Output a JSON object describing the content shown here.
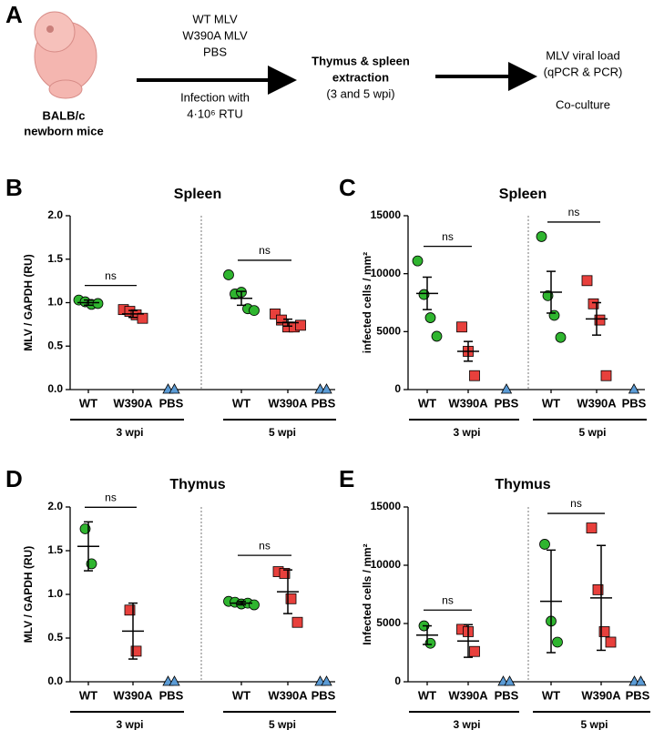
{
  "diagram": {
    "panel": "A",
    "mouse_label": [
      "BALB/c",
      "newborn mice"
    ],
    "treatments": [
      "WT MLV",
      "W390A MLV",
      "PBS"
    ],
    "infection": [
      "Infection with",
      "4·10⁶ RTU"
    ],
    "extraction": [
      "Thymus & spleen",
      "extraction",
      "(3 and 5 wpi)"
    ],
    "readouts": [
      "MLV viral load",
      "(qPCR & PCR)",
      "Co-culture"
    ]
  },
  "chart_data": [
    {
      "type": "scatter",
      "panel": "B",
      "title": "Spleen",
      "y_label": "MLV / GAPDH (RU)",
      "ylim": [
        0,
        2
      ],
      "yticks": [
        {
          "value": 0,
          "label": "0.0"
        },
        0.5,
        {
          "value": 1,
          "label": "1.0"
        },
        1.5,
        {
          "value": 2,
          "label": "2.0"
        }
      ],
      "groups": [
        {
          "name": "3 wpi",
          "comparison": "ns",
          "categories": [
            {
              "name": "WT",
              "color": "#2fb52f",
              "marker": "circle",
              "values": [
                1.03,
                1.01,
                0.98,
                0.99
              ],
              "mean": 1.0,
              "error": 0.03
            },
            {
              "name": "W390A",
              "color": "#e8403c",
              "marker": "square",
              "values": [
                0.92,
                0.9,
                0.86,
                0.82
              ],
              "mean": 0.87,
              "error": 0.04
            },
            {
              "name": "PBS",
              "color": "#5b9bd5",
              "marker": "triangle",
              "values": [
                0,
                0
              ]
            }
          ]
        },
        {
          "name": "5 wpi",
          "comparison": "ns",
          "categories": [
            {
              "name": "WT",
              "color": "#2fb52f",
              "marker": "circle",
              "values": [
                1.32,
                1.1,
                1.12,
                0.93,
                0.91
              ],
              "mean": 1.05,
              "error": 0.08
            },
            {
              "name": "W390A",
              "color": "#e8403c",
              "marker": "square",
              "values": [
                0.87,
                0.8,
                0.72,
                0.72,
                0.74
              ],
              "mean": 0.77,
              "error": 0.04
            },
            {
              "name": "PBS",
              "color": "#5b9bd5",
              "marker": "triangle",
              "values": [
                0,
                0
              ]
            }
          ]
        }
      ]
    },
    {
      "type": "scatter",
      "panel": "C",
      "title": "Spleen",
      "y_label": "infected cells / mm²",
      "ylim": [
        0,
        15000
      ],
      "yticks": [
        0,
        5000,
        10000,
        15000
      ],
      "groups": [
        {
          "name": "3 wpi",
          "comparison": "ns",
          "categories": [
            {
              "name": "WT",
              "color": "#2fb52f",
              "marker": "circle",
              "values": [
                11100,
                8200,
                6200,
                4600
              ],
              "mean": 8300,
              "error": 1400
            },
            {
              "name": "W390A",
              "color": "#e8403c",
              "marker": "square",
              "values": [
                5400,
                3300,
                1200
              ],
              "mean": 3300,
              "error": 850
            },
            {
              "name": "PBS",
              "color": "#5b9bd5",
              "marker": "triangle",
              "values": [
                0
              ]
            }
          ]
        },
        {
          "name": "5 wpi",
          "comparison": "ns",
          "categories": [
            {
              "name": "WT",
              "color": "#2fb52f",
              "marker": "circle",
              "values": [
                13200,
                8100,
                6400,
                4500
              ],
              "mean": 8400,
              "error": 1800
            },
            {
              "name": "W390A",
              "color": "#e8403c",
              "marker": "square",
              "values": [
                9400,
                7400,
                6000,
                1200
              ],
              "mean": 6100,
              "error": 1400
            },
            {
              "name": "PBS",
              "color": "#5b9bd5",
              "marker": "triangle",
              "values": [
                0
              ]
            }
          ]
        }
      ]
    },
    {
      "type": "scatter",
      "panel": "D",
      "title": "Thymus",
      "y_label": "MLV / GAPDH (RU)",
      "ylim": [
        0,
        2
      ],
      "yticks": [
        {
          "value": 0,
          "label": "0.0"
        },
        0.5,
        {
          "value": 1,
          "label": "1.0"
        },
        1.5,
        {
          "value": 2,
          "label": "2.0"
        }
      ],
      "groups": [
        {
          "name": "3 wpi",
          "comparison": "ns",
          "categories": [
            {
              "name": "WT",
              "color": "#2fb52f",
              "marker": "circle",
              "values": [
                1.75,
                1.35
              ],
              "mean": 1.55,
              "error": 0.28
            },
            {
              "name": "W390A",
              "color": "#e8403c",
              "marker": "square",
              "values": [
                0.82,
                0.35
              ],
              "mean": 0.58,
              "error": 0.32
            },
            {
              "name": "PBS",
              "color": "#5b9bd5",
              "marker": "triangle",
              "values": [
                0,
                0
              ]
            }
          ]
        },
        {
          "name": "5 wpi",
          "comparison": "ns",
          "categories": [
            {
              "name": "WT",
              "color": "#2fb52f",
              "marker": "circle",
              "values": [
                0.92,
                0.91,
                0.89,
                0.9,
                0.88
              ],
              "mean": 0.9,
              "error": 0.02
            },
            {
              "name": "W390A",
              "color": "#e8403c",
              "marker": "square",
              "values": [
                1.26,
                1.24,
                0.95,
                0.68
              ],
              "mean": 1.03,
              "error": 0.25
            },
            {
              "name": "PBS",
              "color": "#5b9bd5",
              "marker": "triangle",
              "values": [
                0,
                0
              ]
            }
          ]
        }
      ]
    },
    {
      "type": "scatter",
      "panel": "E",
      "title": "Thymus",
      "y_label": "Infected cells / mm²",
      "ylim": [
        0,
        15000
      ],
      "yticks": [
        0,
        5000,
        10000,
        15000
      ],
      "groups": [
        {
          "name": "3 wpi",
          "comparison": "ns",
          "categories": [
            {
              "name": "WT",
              "color": "#2fb52f",
              "marker": "circle",
              "values": [
                4800,
                3300
              ],
              "mean": 4000,
              "error": 800
            },
            {
              "name": "W390A",
              "color": "#e8403c",
              "marker": "square",
              "values": [
                4500,
                4300,
                2600
              ],
              "mean": 3500,
              "error": 1400
            },
            {
              "name": "PBS",
              "color": "#5b9bd5",
              "marker": "triangle",
              "values": [
                0,
                0
              ]
            }
          ]
        },
        {
          "name": "5 wpi",
          "comparison": "ns",
          "categories": [
            {
              "name": "WT",
              "color": "#2fb52f",
              "marker": "circle",
              "values": [
                11800,
                5200,
                3400
              ],
              "mean": 6900,
              "error": 4400
            },
            {
              "name": "W390A",
              "color": "#e8403c",
              "marker": "square",
              "values": [
                13200,
                7900,
                4300,
                3400
              ],
              "mean": 7200,
              "error": 4500
            },
            {
              "name": "PBS",
              "color": "#5b9bd5",
              "marker": "triangle",
              "values": [
                0,
                0
              ]
            }
          ]
        }
      ]
    }
  ]
}
